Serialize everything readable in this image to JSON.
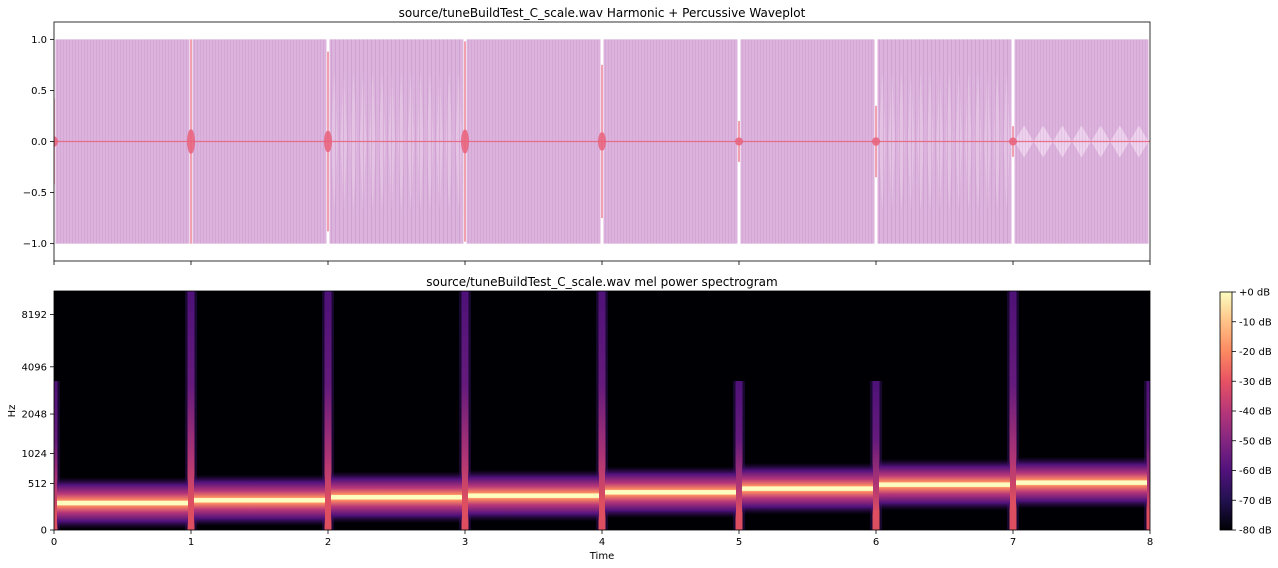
{
  "chart_data": [
    {
      "type": "line",
      "title": "source/tuneBuildTest_C_scale.wav Harmonic + Percussive Waveplot",
      "xlabel": "",
      "ylabel": "",
      "xlim": [
        0,
        8
      ],
      "ylim": [
        -1.17,
        1.17
      ],
      "yticks": [
        1.0,
        0.5,
        0.0,
        -0.5,
        -1.0
      ],
      "ytick_labels": [
        "1.0",
        "0.5",
        "0.0",
        "−0.5",
        "−1.0"
      ],
      "xticks": [
        0,
        1,
        2,
        3,
        4,
        5,
        6,
        7,
        8
      ],
      "harmonic": {
        "color": "#cf95cf",
        "amplitude": 1.0,
        "segments": [
          {
            "t0": 0,
            "t1": 1,
            "texture": "solid"
          },
          {
            "t0": 1,
            "t1": 2,
            "texture": "solid"
          },
          {
            "t0": 2,
            "t1": 3,
            "texture": "beating"
          },
          {
            "t0": 3,
            "t1": 4,
            "texture": "solid"
          },
          {
            "t0": 4,
            "t1": 5,
            "texture": "solid"
          },
          {
            "t0": 5,
            "t1": 6,
            "texture": "solid"
          },
          {
            "t0": 6,
            "t1": 7,
            "texture": "beating"
          },
          {
            "t0": 7,
            "t1": 8,
            "texture": "diamond"
          }
        ]
      },
      "percussive": {
        "color": "#e8607a",
        "baseline": 0.0,
        "onsets": [
          0,
          1,
          2,
          3,
          4,
          5,
          6,
          7
        ],
        "peaks": [
          0.42,
          1.0,
          0.88,
          0.98,
          0.75,
          0.2,
          0.35,
          0.15
        ]
      }
    },
    {
      "type": "heatmap",
      "title": "source/tuneBuildTest_C_scale.wav mel power spectrogram",
      "xlabel": "Time",
      "ylabel": "Hz",
      "xlim": [
        0,
        8
      ],
      "xticks": [
        0,
        1,
        2,
        3,
        4,
        5,
        6,
        7,
        8
      ],
      "yticks": [
        0,
        512,
        1024,
        2048,
        4096,
        8192
      ],
      "ytick_labels": [
        "0",
        "512",
        "1024",
        "2048",
        "4096",
        "8192"
      ],
      "y_scale": "mel",
      "y_max_hz": 11025,
      "notes_hz": [
        262,
        294,
        330,
        349,
        392,
        440,
        494,
        523
      ],
      "onsets": [
        0,
        1,
        2,
        3,
        4,
        5,
        6,
        7,
        8
      ],
      "onset_strength": [
        0.5,
        1.0,
        1.0,
        1.0,
        1.0,
        0.5,
        0.5,
        1.0,
        0.5
      ],
      "colorbar": {
        "ticks": [
          0,
          -10,
          -20,
          -30,
          -40,
          -50,
          -60,
          -70,
          -80
        ],
        "labels": [
          "+0 dB",
          "-10 dB",
          "-20 dB",
          "-30 dB",
          "-40 dB",
          "-50 dB",
          "-60 dB",
          "-70 dB",
          "-80 dB"
        ],
        "colors": [
          "#fcfdbf",
          "#fec287",
          "#fc8961",
          "#e75263",
          "#b73779",
          "#832681",
          "#51127c",
          "#221150",
          "#000004"
        ]
      }
    }
  ]
}
